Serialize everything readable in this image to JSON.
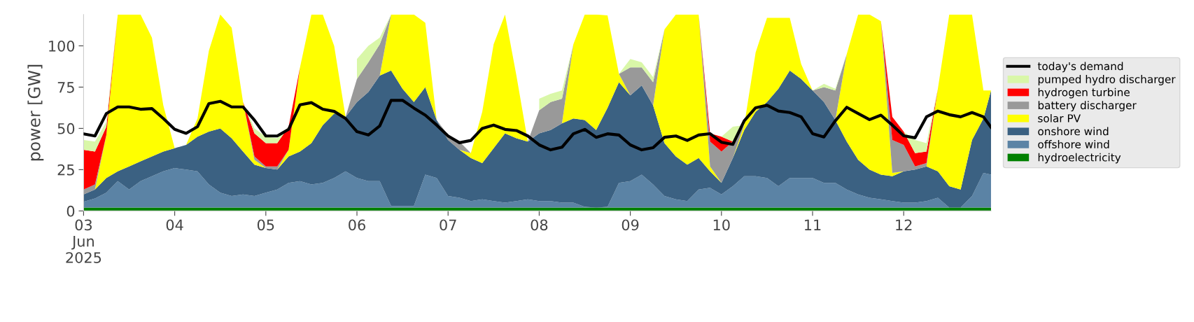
{
  "chart_data": {
    "type": "area",
    "stacked": true,
    "ylabel": "power [GW]",
    "legend": "right",
    "x": [
      "2025-06-03T00:00",
      "2025-06-03T03:00",
      "2025-06-03T06:00",
      "2025-06-03T09:00",
      "2025-06-03T12:00",
      "2025-06-03T15:00",
      "2025-06-03T18:00",
      "2025-06-03T21:00",
      "2025-06-04T00:00",
      "2025-06-04T03:00",
      "2025-06-04T06:00",
      "2025-06-04T09:00",
      "2025-06-04T12:00",
      "2025-06-04T15:00",
      "2025-06-04T18:00",
      "2025-06-04T21:00",
      "2025-06-05T00:00",
      "2025-06-05T03:00",
      "2025-06-05T06:00",
      "2025-06-05T09:00",
      "2025-06-05T12:00",
      "2025-06-05T15:00",
      "2025-06-05T18:00",
      "2025-06-05T21:00",
      "2025-06-06T00:00",
      "2025-06-06T03:00",
      "2025-06-06T06:00",
      "2025-06-06T09:00",
      "2025-06-06T12:00",
      "2025-06-06T15:00",
      "2025-06-06T18:00",
      "2025-06-06T21:00",
      "2025-06-07T00:00",
      "2025-06-07T03:00",
      "2025-06-07T06:00",
      "2025-06-07T09:00",
      "2025-06-07T12:00",
      "2025-06-07T15:00",
      "2025-06-07T18:00",
      "2025-06-07T21:00",
      "2025-06-08T00:00",
      "2025-06-08T03:00",
      "2025-06-08T06:00",
      "2025-06-08T09:00",
      "2025-06-08T12:00",
      "2025-06-08T15:00",
      "2025-06-08T18:00",
      "2025-06-08T21:00",
      "2025-06-09T00:00",
      "2025-06-09T03:00",
      "2025-06-09T06:00",
      "2025-06-09T09:00",
      "2025-06-09T12:00",
      "2025-06-09T15:00",
      "2025-06-09T18:00",
      "2025-06-09T21:00",
      "2025-06-10T00:00",
      "2025-06-10T03:00",
      "2025-06-10T06:00",
      "2025-06-10T09:00",
      "2025-06-10T12:00",
      "2025-06-10T15:00",
      "2025-06-10T18:00",
      "2025-06-10T21:00",
      "2025-06-11T00:00",
      "2025-06-11T03:00",
      "2025-06-11T06:00",
      "2025-06-11T09:00",
      "2025-06-11T12:00",
      "2025-06-11T15:00",
      "2025-06-11T18:00",
      "2025-06-11T21:00",
      "2025-06-12T00:00",
      "2025-06-12T03:00",
      "2025-06-12T06:00",
      "2025-06-12T09:00",
      "2025-06-12T12:00",
      "2025-06-12T15:00",
      "2025-06-12T18:00",
      "2025-06-12T21:00",
      "2025-06-12T23:00"
    ],
    "series": [
      {
        "name": "hydroelectricity",
        "color": "#008000",
        "values": [
          2,
          2,
          2,
          2,
          2,
          2,
          2,
          2,
          2,
          2,
          2,
          2,
          2,
          2,
          2,
          2,
          2,
          2,
          2,
          2,
          2,
          2,
          2,
          2,
          2,
          2,
          2,
          2,
          2,
          2,
          2,
          2,
          2,
          2,
          2,
          2,
          2,
          2,
          2,
          2,
          2,
          2,
          2,
          2,
          2,
          2,
          2,
          2,
          2,
          2,
          2,
          2,
          2,
          2,
          2,
          2,
          2,
          2,
          2,
          2,
          2,
          2,
          2,
          2,
          2,
          2,
          2,
          2,
          2,
          2,
          2,
          2,
          2,
          2,
          2,
          2,
          2,
          2,
          2,
          2,
          2
        ]
      },
      {
        "name": "offshore wind",
        "color": "#5b83a5",
        "values": [
          3.5,
          5.5,
          9,
          16,
          11,
          16,
          19,
          22,
          24,
          23,
          22,
          14,
          9,
          7,
          8,
          7,
          9,
          11,
          15,
          16,
          14,
          15,
          18,
          22,
          18,
          16,
          16,
          1,
          1,
          1,
          20,
          18,
          7,
          6,
          4,
          5,
          4,
          3,
          4,
          5,
          4,
          4,
          3,
          3,
          0.5,
          0,
          0.5,
          15,
          16,
          20,
          14,
          7,
          5,
          4,
          11,
          12,
          8,
          13,
          19,
          19,
          18,
          13,
          18,
          18,
          18,
          15,
          15,
          11,
          8,
          6,
          5,
          4,
          3,
          3,
          4,
          6,
          0,
          0,
          7,
          21,
          20
        ]
      },
      {
        "name": "onshore wind",
        "color": "#3b6182",
        "values": [
          4.5,
          5.5,
          9,
          6,
          14,
          12,
          12,
          12,
          12,
          15,
          21,
          32,
          39,
          35,
          26,
          19,
          15,
          12,
          16,
          18,
          25,
          35,
          39,
          33,
          46,
          54,
          64,
          82,
          71,
          63,
          53,
          35,
          34,
          29,
          26,
          22,
          32,
          42,
          38,
          35,
          41,
          43,
          48,
          51,
          52.5,
          47,
          60,
          61,
          52,
          54,
          48,
          32,
          26,
          22,
          19,
          10,
          7,
          17,
          28,
          39,
          46,
          59,
          65,
          60,
          53,
          49,
          38,
          29,
          21,
          17,
          15,
          15,
          19,
          20,
          21,
          16,
          13,
          11,
          34,
          33,
          51
        ]
      },
      {
        "name": "solar PV",
        "color": "#ffff00",
        "values": [
          0,
          0,
          26,
          95,
          92,
          89,
          72,
          28,
          0,
          0,
          11,
          49,
          69,
          67,
          30,
          3,
          0,
          0,
          4,
          51,
          78,
          67,
          41,
          0,
          0,
          0,
          0,
          34,
          45,
          53,
          39,
          0,
          0,
          0,
          3,
          31,
          63,
          72,
          38,
          0,
          0,
          0,
          0,
          45,
          64,
          70,
          56,
          5,
          0,
          0,
          0,
          69,
          86,
          91,
          87,
          3,
          0,
          0,
          3,
          36,
          51,
          43,
          32,
          9,
          0,
          0,
          0,
          53,
          88,
          94,
          93,
          2,
          0,
          0,
          0,
          50,
          104,
          106,
          76,
          17,
          0
        ]
      },
      {
        "name": "battery discharger",
        "color": "#999999",
        "values": [
          3,
          3,
          0,
          null,
          null,
          null,
          null,
          null,
          null,
          null,
          null,
          null,
          null,
          null,
          0,
          2,
          1,
          2,
          0,
          null,
          null,
          null,
          null,
          0,
          14,
          18,
          19,
          0,
          null,
          null,
          null,
          0,
          3,
          5,
          0,
          null,
          null,
          null,
          null,
          0,
          14,
          17,
          15,
          0,
          null,
          null,
          null,
          0,
          17,
          11,
          14,
          0,
          null,
          null,
          0,
          15,
          19,
          10,
          0,
          null,
          null,
          null,
          null,
          null,
          0,
          9,
          18,
          0,
          null,
          null,
          0,
          20,
          16,
          2,
          2,
          0,
          null,
          null,
          null,
          null,
          null
        ]
      },
      {
        "name": "hydrogen turbine",
        "color": "#ff0000",
        "values": [
          24,
          20,
          5,
          0,
          null,
          null,
          null,
          null,
          null,
          null,
          null,
          null,
          null,
          null,
          0,
          14,
          14,
          14,
          14,
          0,
          null,
          null,
          null,
          null,
          null,
          null,
          null,
          null,
          null,
          null,
          null,
          null,
          null,
          null,
          null,
          null,
          null,
          null,
          null,
          null,
          null,
          null,
          null,
          null,
          null,
          null,
          null,
          null,
          null,
          null,
          null,
          null,
          null,
          null,
          0,
          5,
          9,
          0,
          null,
          null,
          null,
          null,
          null,
          null,
          null,
          null,
          null,
          null,
          null,
          null,
          0,
          14,
          8,
          8,
          7,
          0,
          null,
          null,
          null,
          null,
          null
        ]
      },
      {
        "name": "pumped hydro discharger",
        "color": "#d9f7a8",
        "values": [
          6,
          6,
          3,
          0,
          null,
          null,
          null,
          null,
          null,
          null,
          null,
          null,
          null,
          null,
          0,
          3,
          4,
          3,
          0,
          null,
          null,
          null,
          null,
          null,
          12,
          10,
          4,
          0,
          null,
          null,
          null,
          null,
          null,
          null,
          null,
          null,
          null,
          null,
          null,
          null,
          7,
          5,
          5,
          0,
          null,
          null,
          null,
          0,
          5,
          3,
          3,
          0,
          null,
          null,
          null,
          null,
          0,
          9,
          0,
          null,
          null,
          null,
          null,
          null,
          0,
          2,
          1,
          0,
          null,
          null,
          null,
          null,
          0,
          8,
          5,
          0,
          null,
          null,
          null,
          null,
          null
        ]
      },
      {
        "name": "today's demand",
        "type": "line",
        "color": "#000000",
        "values": [
          46.7,
          45.4,
          59,
          63,
          63,
          61.6,
          62,
          56,
          49.4,
          47,
          51,
          65,
          66.4,
          63,
          63,
          55,
          45.4,
          45.4,
          49.4,
          64.3,
          65.6,
          61.6,
          60.3,
          56,
          48,
          46,
          51.5,
          67,
          67,
          62.3,
          58,
          52,
          45.4,
          41.3,
          42.7,
          50,
          52,
          49.4,
          48.7,
          45.4,
          40,
          37,
          38.6,
          46.7,
          49.4,
          44.6,
          46.7,
          46,
          40,
          37,
          38.3,
          44.6,
          45.4,
          42.7,
          46,
          46.8,
          41.6,
          40.3,
          54.6,
          62.5,
          64,
          60.5,
          59.6,
          57,
          46.8,
          44.8,
          54.6,
          62.8,
          59,
          55.3,
          58,
          52,
          45.5,
          44.3,
          57,
          60.5,
          58.3,
          57,
          59.6,
          57,
          50.7
        ]
      }
    ],
    "xlim": [
      "2025-06-03T00:00",
      "2025-06-12T23:00"
    ],
    "xticks": [
      {
        "value": "2025-06-03",
        "label": "03\nJun\n2025"
      },
      {
        "value": "2025-06-04",
        "label": "04"
      },
      {
        "value": "2025-06-05",
        "label": "05"
      },
      {
        "value": "2025-06-06",
        "label": "06"
      },
      {
        "value": "2025-06-07",
        "label": "07"
      },
      {
        "value": "2025-06-08",
        "label": "08"
      },
      {
        "value": "2025-06-09",
        "label": "09"
      },
      {
        "value": "2025-06-10",
        "label": "10"
      },
      {
        "value": "2025-06-11",
        "label": "11"
      },
      {
        "value": "2025-06-12",
        "label": "12"
      }
    ],
    "ylim": [
      0,
      119
    ],
    "yticks": [
      0,
      25,
      50,
      75,
      100
    ]
  }
}
